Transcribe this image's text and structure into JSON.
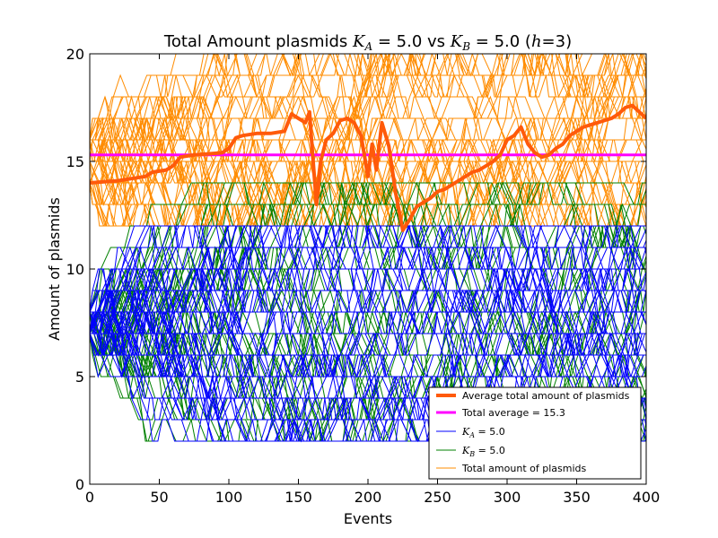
{
  "chart_data": {
    "type": "line",
    "title_parts": {
      "prefix": "Total Amount plasmids ",
      "ka_sym": "K",
      "ka_sub": "A",
      "ka_val": " = 5.0 vs ",
      "kb_sym": "K",
      "kb_sub": "B",
      "kb_val": " = 5.0 (",
      "h_sym": "h",
      "h_val": "=3)"
    },
    "xlabel": "Events",
    "ylabel": "Amount of plasmids",
    "xlim": [
      0,
      400
    ],
    "ylim": [
      0,
      20
    ],
    "xticks": [
      0,
      50,
      100,
      150,
      200,
      250,
      300,
      350,
      400
    ],
    "yticks": [
      0,
      5,
      10,
      15,
      20
    ],
    "legend_position": "lower-right",
    "legend": {
      "avg_total": "Average total amount of plasmids",
      "total_avg": "Total average = 15.3",
      "ka_sym": "K",
      "ka_sub": "A",
      "ka_val": " = 5.0",
      "kb_sym": "K",
      "kb_sub": "B",
      "kb_val": " = 5.0",
      "total": "Total amount of plasmids"
    },
    "total_average": 15.3,
    "average_total_series": {
      "name": "Average total amount of plasmids",
      "color": "#ff5a0a",
      "x": [
        0,
        10,
        20,
        30,
        40,
        45,
        55,
        60,
        65,
        75,
        85,
        95,
        100,
        105,
        110,
        120,
        130,
        140,
        145,
        150,
        155,
        158,
        160,
        163,
        166,
        170,
        175,
        180,
        185,
        190,
        195,
        200,
        203,
        206,
        210,
        215,
        220,
        225,
        230,
        235,
        240,
        245,
        250,
        255,
        260,
        265,
        270,
        275,
        280,
        285,
        290,
        295,
        300,
        305,
        310,
        315,
        320,
        325,
        330,
        335,
        340,
        345,
        350,
        355,
        360,
        365,
        370,
        375,
        380,
        385,
        390,
        395,
        400
      ],
      "y": [
        14.0,
        14.05,
        14.1,
        14.2,
        14.3,
        14.5,
        14.6,
        14.8,
        15.2,
        15.3,
        15.35,
        15.4,
        15.6,
        16.1,
        16.2,
        16.3,
        16.3,
        16.4,
        17.2,
        17.0,
        16.8,
        17.3,
        15.5,
        13.0,
        15.0,
        16.0,
        16.3,
        16.9,
        17.0,
        16.8,
        16.2,
        14.3,
        15.8,
        14.6,
        16.8,
        15.7,
        13.5,
        11.8,
        12.3,
        12.9,
        13.1,
        13.3,
        13.6,
        13.7,
        13.9,
        14.1,
        14.3,
        14.5,
        14.6,
        14.8,
        15.0,
        15.3,
        16.0,
        16.2,
        16.6,
        15.8,
        15.4,
        15.2,
        15.3,
        15.6,
        15.8,
        16.2,
        16.4,
        16.6,
        16.7,
        16.8,
        16.9,
        17.0,
        17.2,
        17.5,
        17.6,
        17.3,
        17.0
      ]
    },
    "colors": {
      "average_total": "#ff5a0a",
      "total_average": "#ff00ff",
      "ka": "#0000ff",
      "kb": "#008000",
      "total": "#ff8c00"
    },
    "series_summary": {
      "total_amount_runs": 60,
      "ka_runs": 60,
      "kb_runs": 60,
      "note_range_total": [
        12,
        20
      ],
      "note_range_ka": [
        2,
        12
      ],
      "note_range_kb": [
        2,
        14
      ]
    }
  }
}
